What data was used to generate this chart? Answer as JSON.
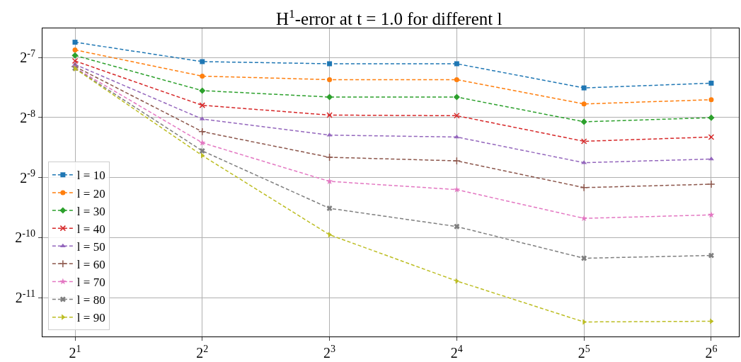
{
  "chart_data": {
    "type": "line",
    "title": "H$^{1}$-error at t = 1.0 for different l",
    "x": [
      2,
      4,
      8,
      16,
      32,
      64
    ],
    "log": "xy",
    "xlim": [
      1.675,
      74.4
    ],
    "ylim": [
      0.000312,
      0.01094
    ],
    "xticks": [
      {
        "value": 2,
        "label": "2$^{1}$"
      },
      {
        "value": 4,
        "label": "2$^{2}$"
      },
      {
        "value": 8,
        "label": "2$^{3}$"
      },
      {
        "value": 16,
        "label": "2$^{4}$"
      },
      {
        "value": 32,
        "label": "2$^{5}$"
      },
      {
        "value": 64,
        "label": "2$^{6}$"
      }
    ],
    "yticks": [
      {
        "value": 0.0078125,
        "label": "2$^{-7}$"
      },
      {
        "value": 0.00390625,
        "label": "2$^{-8}$"
      },
      {
        "value": 0.001953125,
        "label": "2$^{-9}$"
      },
      {
        "value": 0.0009765625,
        "label": "2$^{-10}$"
      },
      {
        "value": 0.00048828125,
        "label": "2$^{-11}$"
      }
    ],
    "grid": true,
    "legend": "bottom left",
    "line_style": "dashed",
    "series": [
      {
        "name": "l = 10",
        "color": "#1f77b4",
        "marker": "square",
        "values": [
          0.00932,
          0.00745,
          0.00727,
          0.00727,
          0.0055,
          0.00581
        ]
      },
      {
        "name": "l = 20",
        "color": "#ff7f0e",
        "marker": "circle",
        "values": [
          0.00853,
          0.0063,
          0.00605,
          0.00605,
          0.00457,
          0.0048
        ]
      },
      {
        "name": "l = 30",
        "color": "#2ca02c",
        "marker": "diamond",
        "values": [
          0.008,
          0.00533,
          0.00495,
          0.00495,
          0.00372,
          0.0039
        ]
      },
      {
        "name": "l = 40",
        "color": "#d62728",
        "marker": "x",
        "values": [
          0.00751,
          0.0045,
          0.00402,
          0.00399,
          0.00297,
          0.00312
        ]
      },
      {
        "name": "l = 50",
        "color": "#9467bd",
        "marker": "triangle",
        "values": [
          0.00721,
          0.00384,
          0.00319,
          0.00312,
          0.00232,
          0.00242
        ]
      },
      {
        "name": "l = 60",
        "color": "#8c564b",
        "marker": "plus",
        "values": [
          0.00704,
          0.00332,
          0.00247,
          0.00237,
          0.00174,
          0.00181
        ]
      },
      {
        "name": "l = 70",
        "color": "#e377c2",
        "marker": "star",
        "values": [
          0.00693,
          0.00292,
          0.00187,
          0.0017,
          0.00122,
          0.00127
        ]
      },
      {
        "name": "l = 80",
        "color": "#7f7f7f",
        "marker": "cross",
        "values": [
          0.0069,
          0.00266,
          0.00137,
          0.00111,
          0.00077,
          0.000795
        ]
      },
      {
        "name": "l = 90",
        "color": "#bcbd22",
        "marker": "triangle-right",
        "values": [
          0.00687,
          0.00252,
          0.00101,
          0.000592,
          0.000369,
          0.000372
        ]
      }
    ]
  }
}
